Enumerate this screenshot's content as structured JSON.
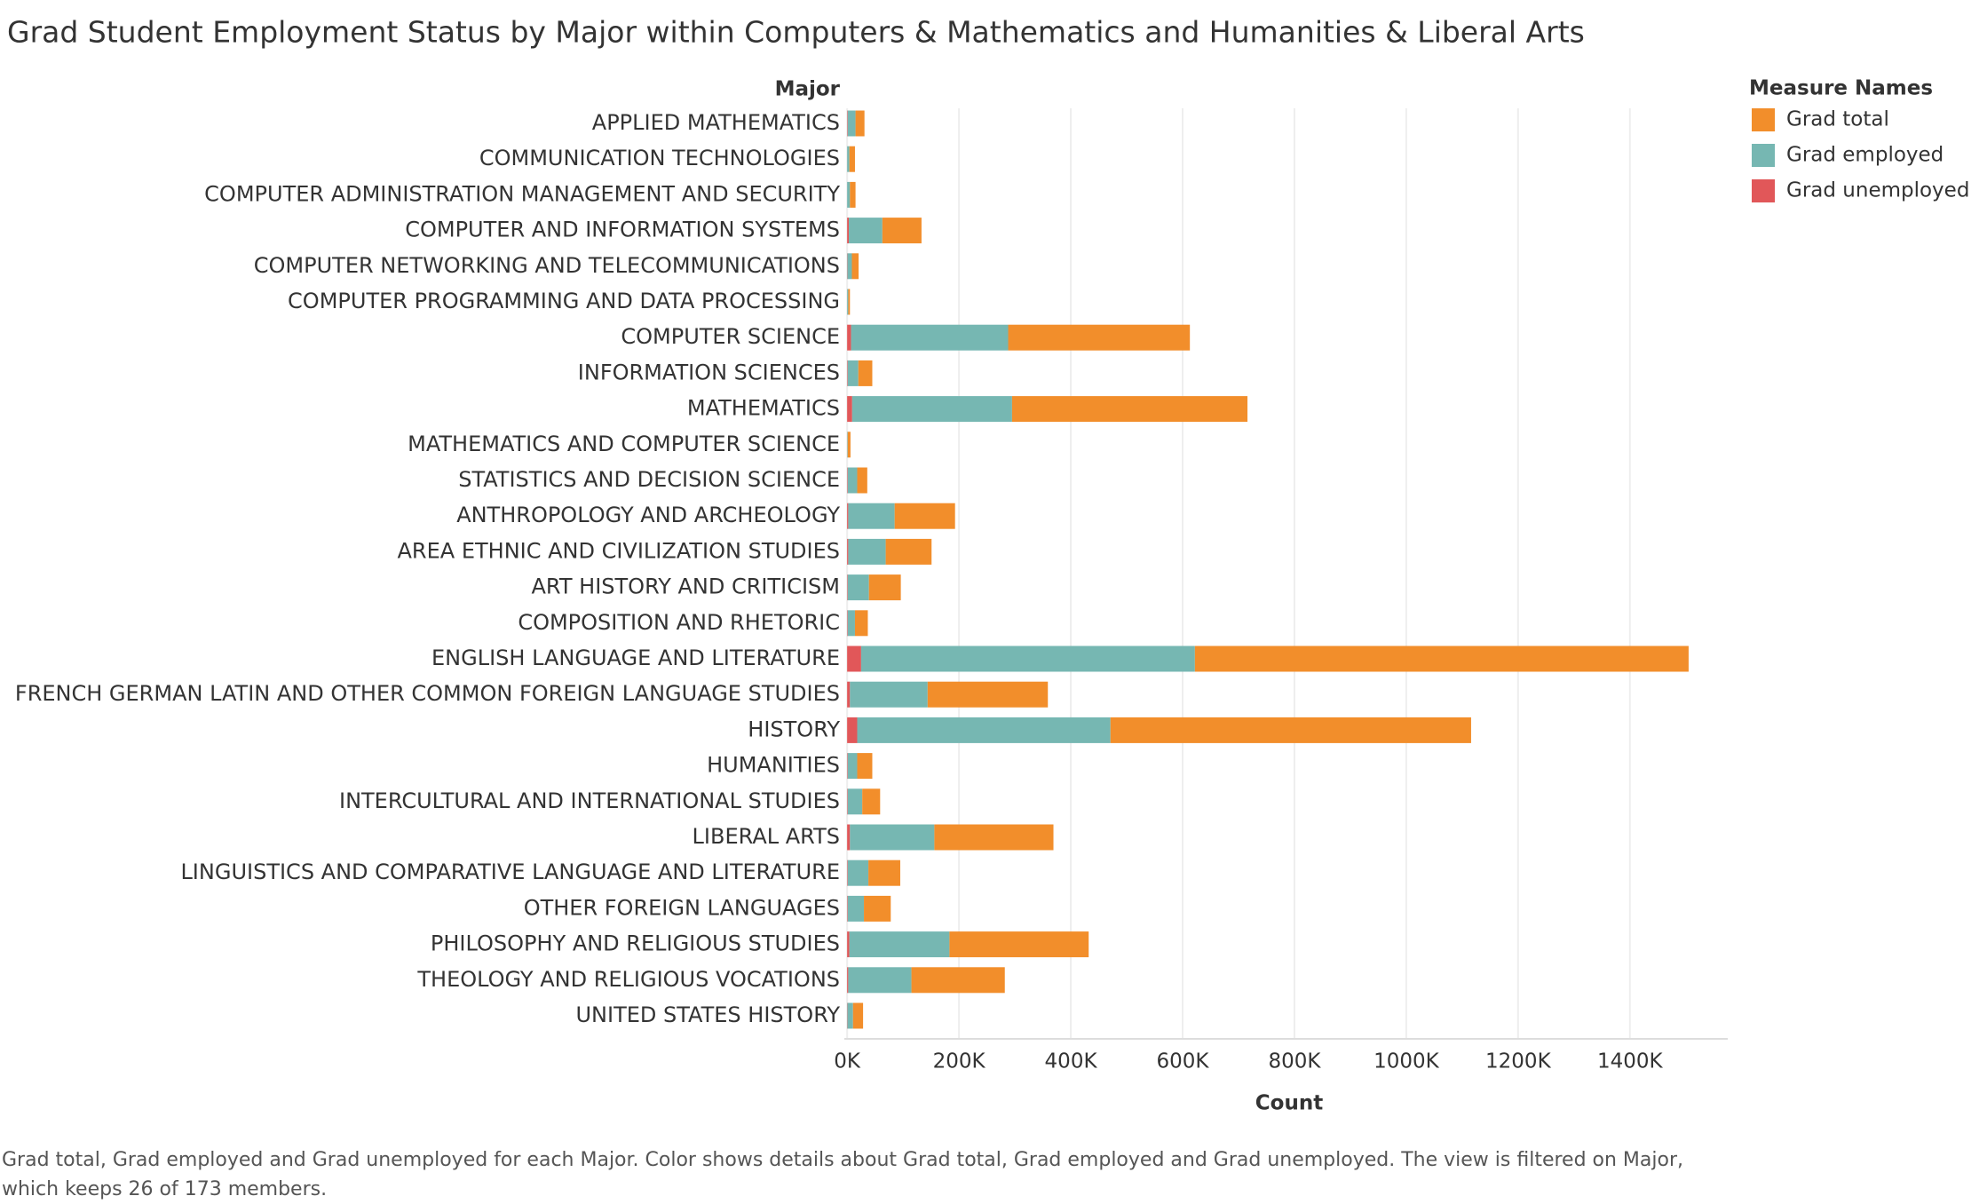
{
  "chart_data": {
    "type": "stacked_barh",
    "title": "Grad Student Employment Status by Major within Computers & Mathematics and Humanities & Liberal Arts",
    "y_axis_title": "Major",
    "x_axis_title": "Count",
    "legend_title": "Measure Names",
    "legend_position": "top-right",
    "grid": true,
    "footnote": "Grad total, Grad employed and Grad unemployed for each Major.  Color shows details about Grad total, Grad employed and Grad unemployed. The view is filtered on Major, which keeps 26 of 173 members.",
    "categories": [
      "APPLIED MATHEMATICS",
      "COMMUNICATION TECHNOLOGIES",
      "COMPUTER ADMINISTRATION MANAGEMENT AND SECURITY",
      "COMPUTER AND INFORMATION SYSTEMS",
      "COMPUTER NETWORKING AND TELECOMMUNICATIONS",
      "COMPUTER PROGRAMMING AND DATA PROCESSING",
      "COMPUTER SCIENCE",
      "INFORMATION SCIENCES",
      "MATHEMATICS",
      "MATHEMATICS AND COMPUTER SCIENCE",
      "STATISTICS AND DECISION SCIENCE",
      "ANTHROPOLOGY AND ARCHEOLOGY",
      "AREA ETHNIC AND CIVILIZATION STUDIES",
      "ART HISTORY AND CRITICISM",
      "COMPOSITION AND RHETORIC",
      "ENGLISH LANGUAGE AND LITERATURE",
      "FRENCH GERMAN LATIN AND OTHER COMMON FOREIGN LANGUAGE STUDIES",
      "HISTORY",
      "HUMANITIES",
      "INTERCULTURAL AND INTERNATIONAL STUDIES",
      "LIBERAL ARTS",
      "LINGUISTICS AND COMPARATIVE LANGUAGE AND LITERATURE",
      "OTHER FOREIGN LANGUAGES",
      "PHILOSOPHY AND RELIGIOUS STUDIES",
      "THEOLOGY AND RELIGIOUS VOCATIONS",
      "UNITED STATES HISTORY"
    ],
    "series": [
      {
        "name": "Grad total",
        "color": "#f28e2b",
        "values": [
          16000,
          10000,
          10000,
          70000,
          12000,
          3000,
          325000,
          25000,
          421000,
          5000,
          18000,
          108000,
          82000,
          57000,
          23000,
          883000,
          215000,
          645000,
          27000,
          32000,
          213000,
          57000,
          48000,
          249000,
          167000,
          18000
        ]
      },
      {
        "name": "Grad employed",
        "color": "#76b7b2",
        "values": [
          14000,
          4000,
          5000,
          60000,
          8000,
          2000,
          281000,
          19000,
          286000,
          1000,
          17000,
          83000,
          67000,
          38000,
          13000,
          597000,
          139000,
          453000,
          17000,
          26000,
          151000,
          37000,
          29000,
          179000,
          113000,
          10000
        ]
      },
      {
        "name": "Grad unemployed",
        "color": "#e15759",
        "values": [
          1000,
          0,
          0,
          3000,
          500,
          0,
          7000,
          1000,
          9000,
          0,
          1000,
          2000,
          2000,
          1000,
          1000,
          25000,
          5000,
          18000,
          1000,
          1000,
          5000,
          1000,
          1000,
          4000,
          2000,
          500
        ]
      }
    ],
    "xlim": [
      -5000,
      1575000
    ],
    "xticks": [
      {
        "value": 0,
        "label": "0K"
      },
      {
        "value": 200000,
        "label": "200K"
      },
      {
        "value": 400000,
        "label": "400K"
      },
      {
        "value": 600000,
        "label": "600K"
      },
      {
        "value": 800000,
        "label": "800K"
      },
      {
        "value": 1000000,
        "label": "1000K"
      },
      {
        "value": 1200000,
        "label": "1200K"
      },
      {
        "value": 1400000,
        "label": "1400K"
      }
    ]
  }
}
